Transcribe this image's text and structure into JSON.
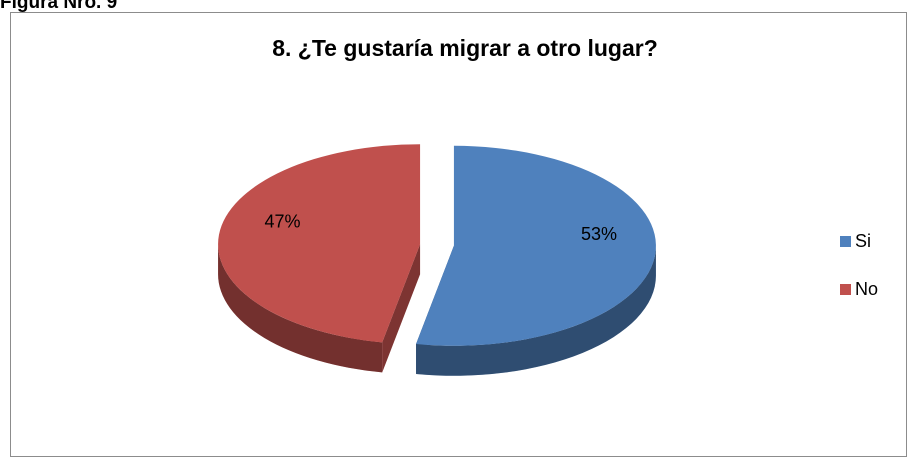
{
  "figure_label": "Figura Nro. 9",
  "chart_data": {
    "type": "pie",
    "title": "8. ¿Te gustaría migrar a otro lugar?",
    "categories": [
      "Si",
      "No"
    ],
    "values": [
      53,
      47
    ],
    "value_labels": [
      "53%",
      "47%"
    ],
    "colors": [
      "#4f81bd",
      "#c0504d"
    ],
    "legend": "right",
    "three_d": true,
    "exploded": true
  }
}
